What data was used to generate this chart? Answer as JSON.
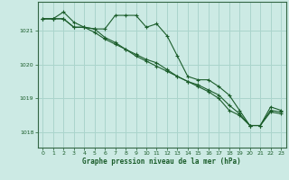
{
  "title": "Graphe pression niveau de la mer (hPa)",
  "background_color": "#cceae4",
  "grid_color": "#aad4cc",
  "line_color": "#1a5c2a",
  "marker": "+",
  "xlim": [
    -0.5,
    23.5
  ],
  "ylim": [
    1017.55,
    1021.85
  ],
  "yticks": [
    1018,
    1019,
    1020,
    1021
  ],
  "xticks": [
    0,
    1,
    2,
    3,
    4,
    5,
    6,
    7,
    8,
    9,
    10,
    11,
    12,
    13,
    14,
    15,
    16,
    17,
    18,
    19,
    20,
    21,
    22,
    23
  ],
  "series": [
    {
      "x": [
        0,
        1,
        2,
        3,
        4,
        5,
        6,
        7,
        8,
        9,
        10,
        11,
        12,
        13,
        14,
        15,
        16,
        17,
        18,
        19,
        20,
        21,
        22,
        23
      ],
      "y": [
        1021.35,
        1021.35,
        1021.55,
        1021.25,
        1021.1,
        1021.05,
        1021.05,
        1021.45,
        1021.45,
        1021.45,
        1021.1,
        1021.2,
        1020.85,
        1020.25,
        1019.65,
        1019.55,
        1019.55,
        1019.35,
        1019.1,
        1018.65,
        1018.2,
        1018.2,
        1018.75,
        1018.65
      ]
    },
    {
      "x": [
        0,
        1,
        2,
        3,
        4,
        5,
        6,
        7,
        8,
        9,
        10,
        11,
        12,
        13,
        14,
        15,
        16,
        17,
        18,
        19,
        20,
        21,
        22,
        23
      ],
      "y": [
        1021.35,
        1021.35,
        1021.35,
        1021.1,
        1021.1,
        1021.05,
        1020.8,
        1020.65,
        1020.45,
        1020.3,
        1020.15,
        1020.05,
        1019.85,
        1019.65,
        1019.5,
        1019.4,
        1019.25,
        1019.1,
        1018.8,
        1018.55,
        1018.2,
        1018.2,
        1018.65,
        1018.6
      ]
    },
    {
      "x": [
        0,
        1,
        2,
        3,
        4,
        5,
        6,
        7,
        8,
        9,
        10,
        11,
        12,
        13,
        14,
        15,
        16,
        17,
        18,
        19,
        20,
        21,
        22,
        23
      ],
      "y": [
        1021.35,
        1021.35,
        1021.35,
        1021.1,
        1021.1,
        1020.95,
        1020.75,
        1020.6,
        1020.45,
        1020.25,
        1020.1,
        1019.95,
        1019.8,
        1019.65,
        1019.5,
        1019.35,
        1019.2,
        1019.0,
        1018.65,
        1018.5,
        1018.2,
        1018.2,
        1018.6,
        1018.55
      ]
    }
  ]
}
